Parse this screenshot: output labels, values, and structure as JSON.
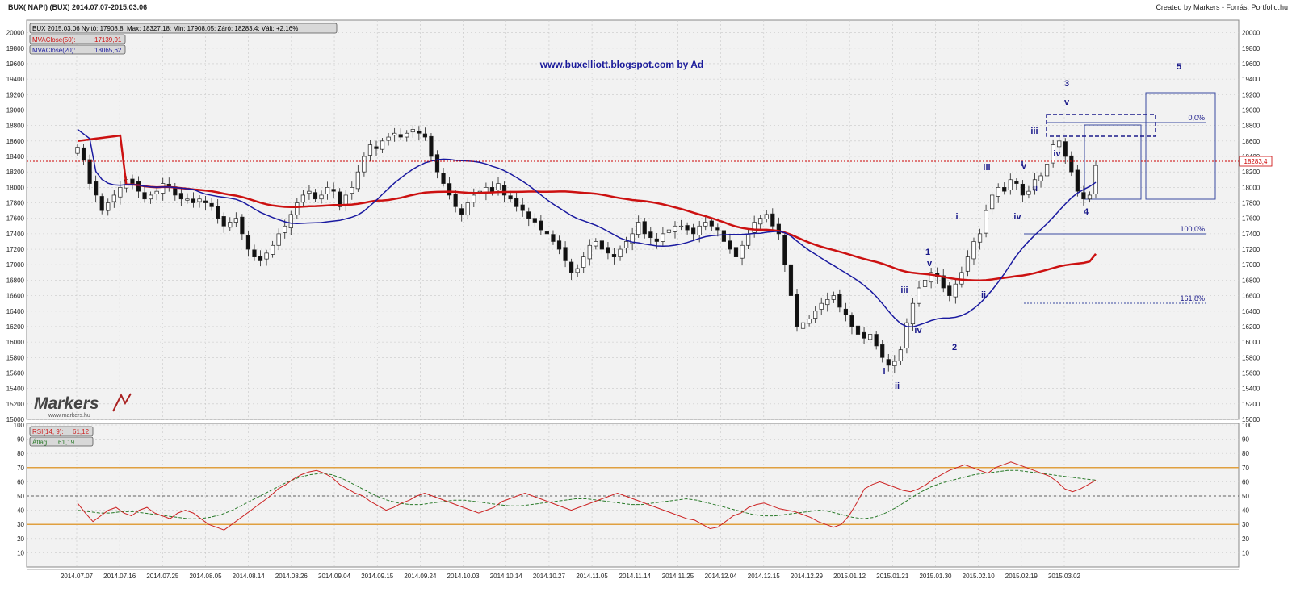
{
  "header": {
    "title_left": "BUX( NAPI)  (BUX)  2014.07.07-2015.03.06",
    "title_right": "Created by Markers - Forrás: Portfolio.hu"
  },
  "price_panel": {
    "ohlc_box": "BUX 2015.03.06 Nyitó: 17908,8; Max: 18327,18; Min: 17908,05; Záró: 18283,4; Vált: +2,16%",
    "ma50_label": "MVAClose(50):",
    "ma50_value": "17139,91",
    "ma20_label": "MVAClose(20):",
    "ma20_value": "18065,62",
    "watermark": "www.buxelliott.blogspot.com by Ad",
    "last_price": "18283,4",
    "logo_text": "Markers",
    "logo_sub": "www.markers.hu"
  },
  "rsi_panel": {
    "rsi_label": "RSI(14, 9):",
    "rsi_value": "61,12",
    "avg_label": "Átlag:",
    "avg_value": "61,19"
  },
  "fib_labels": [
    "0,0%",
    "100,0%",
    "161,8%"
  ],
  "wave_labels": [
    "i",
    "ii",
    "iii",
    "iv",
    "v",
    "1",
    "2",
    "i",
    "ii",
    "iii",
    "iv",
    "v",
    "i",
    "ii",
    "iii",
    "iv",
    "v",
    "3",
    "i",
    "ii",
    "iii",
    "iv",
    "4",
    "5"
  ],
  "colors": {
    "ma50": "#cc1111",
    "ma20": "#1a1aa0",
    "rsi": "#cc2222",
    "rsi_avg": "#2a7a2a",
    "bands": "#e0a040",
    "annotation": "#1a1a8a",
    "last_line": "#cc0000"
  },
  "chart_data": [
    {
      "type": "candlestick",
      "title": "BUX( NAPI)  (BUX)  2014.07.07-2015.03.06",
      "x_ticks": [
        "2014.07.07",
        "2014.07.16",
        "2014.07.25",
        "2014.08.05",
        "2014.08.14",
        "2014.08.26",
        "2014.09.04",
        "2014.09.15",
        "2014.09.24",
        "2014.10.03",
        "2014.10.14",
        "2014.10.27",
        "2014.11.05",
        "2014.11.14",
        "2014.11.25",
        "2014.12.04",
        "2014.12.15",
        "2014.12.29",
        "2015.01.12",
        "2015.01.21",
        "2015.01.30",
        "2015.02.10",
        "2015.02.19",
        "2015.03.02"
      ],
      "y_ticks": [
        15000,
        15200,
        15400,
        15600,
        15800,
        16000,
        16200,
        16400,
        16600,
        16800,
        17000,
        17200,
        17400,
        17600,
        17800,
        18000,
        18200,
        18400,
        18600,
        18800,
        19000,
        19200,
        19400,
        19600,
        19800,
        20000
      ],
      "ylim": [
        15000,
        20100
      ],
      "last_close": 18283.4,
      "close_series": [
        18520,
        18350,
        18050,
        17900,
        17700,
        17800,
        17900,
        18000,
        18100,
        18050,
        17950,
        17850,
        17900,
        17950,
        18050,
        18000,
        17900,
        17850,
        17850,
        17800,
        17850,
        17800,
        17750,
        17600,
        17500,
        17550,
        17600,
        17400,
        17200,
        17100,
        17050,
        17150,
        17250,
        17400,
        17500,
        17650,
        17800,
        17900,
        17950,
        17850,
        17900,
        18000,
        17950,
        17750,
        17900,
        18000,
        18200,
        18400,
        18550,
        18500,
        18600,
        18650,
        18700,
        18650,
        18700,
        18750,
        18700,
        18650,
        18400,
        18200,
        18050,
        17900,
        17750,
        17650,
        17800,
        17900,
        17950,
        18000,
        17950,
        18050,
        17900,
        17850,
        17750,
        17700,
        17600,
        17550,
        17450,
        17400,
        17300,
        17200,
        17050,
        16900,
        16950,
        17100,
        17250,
        17300,
        17200,
        17150,
        17100,
        17200,
        17300,
        17400,
        17550,
        17400,
        17350,
        17300,
        17400,
        17450,
        17500,
        17500,
        17450,
        17400,
        17500,
        17550,
        17500,
        17450,
        17300,
        17200,
        17100,
        17250,
        17400,
        17550,
        17600,
        17650,
        17500,
        17400,
        17000,
        16600,
        16200,
        16250,
        16300,
        16400,
        16500,
        16550,
        16600,
        16450,
        16350,
        16200,
        16100,
        16050,
        16100,
        15950,
        15800,
        15700,
        15750,
        15900,
        16250,
        16500,
        16700,
        16800,
        16900,
        16850,
        16700,
        16600,
        16750,
        16900,
        17100,
        17300,
        17400,
        17700,
        17900,
        18000,
        17950,
        18100,
        18050,
        17900,
        17950,
        18100,
        18150,
        18300,
        18550,
        18600,
        18400,
        18200,
        17950,
        17850,
        17900,
        18283.4
      ],
      "series": [
        {
          "name": "MVAClose(50)",
          "last_value": 17139.91
        },
        {
          "name": "MVAClose(20)",
          "last_value": 18065.62
        }
      ]
    },
    {
      "type": "line",
      "title": "RSI(14, 9)",
      "y_ticks": [
        10,
        20,
        30,
        40,
        50,
        60,
        70,
        80,
        90,
        100
      ],
      "ylim": [
        0,
        100
      ],
      "levels": [
        30,
        50,
        70
      ],
      "series": [
        {
          "name": "RSI(14, 9)",
          "last_value": 61.12,
          "values": [
            45,
            38,
            32,
            36,
            40,
            42,
            38,
            36,
            40,
            42,
            38,
            36,
            34,
            38,
            40,
            38,
            34,
            30,
            28,
            26,
            30,
            34,
            38,
            42,
            46,
            50,
            55,
            58,
            62,
            65,
            67,
            68,
            66,
            63,
            58,
            55,
            52,
            50,
            46,
            43,
            40,
            42,
            45,
            47,
            50,
            52,
            50,
            48,
            46,
            44,
            42,
            40,
            38,
            40,
            42,
            46,
            48,
            50,
            52,
            50,
            48,
            46,
            44,
            42,
            40,
            42,
            44,
            46,
            48,
            50,
            52,
            50,
            48,
            46,
            44,
            42,
            40,
            38,
            36,
            34,
            33,
            30,
            27,
            28,
            32,
            36,
            38,
            42,
            44,
            45,
            43,
            41,
            40,
            39,
            37,
            35,
            32,
            30,
            28,
            30,
            36,
            45,
            55,
            58,
            60,
            58,
            56,
            54,
            53,
            55,
            58,
            62,
            65,
            68,
            70,
            72,
            70,
            68,
            66,
            70,
            72,
            74,
            72,
            70,
            68,
            66,
            64,
            60,
            55,
            53,
            55,
            58,
            61.12
          ]
        },
        {
          "name": "Átlag",
          "last_value": 61.19,
          "values": [
            40,
            39,
            38,
            38,
            39,
            39,
            38,
            37,
            36,
            35,
            34,
            34,
            35,
            37,
            40,
            44,
            48,
            52,
            56,
            60,
            63,
            65,
            66,
            65,
            62,
            58,
            54,
            50,
            47,
            45,
            44,
            44,
            45,
            46,
            47,
            47,
            46,
            45,
            44,
            43,
            43,
            44,
            45,
            46,
            47,
            48,
            48,
            47,
            46,
            45,
            44,
            44,
            45,
            46,
            47,
            48,
            47,
            45,
            43,
            41,
            39,
            37,
            36,
            36,
            37,
            38,
            39,
            40,
            39,
            37,
            35,
            34,
            35,
            38,
            42,
            47,
            52,
            56,
            59,
            61,
            63,
            65,
            66,
            67,
            68,
            68,
            67,
            66,
            65,
            64,
            63,
            62,
            61.19
          ]
        }
      ]
    }
  ]
}
